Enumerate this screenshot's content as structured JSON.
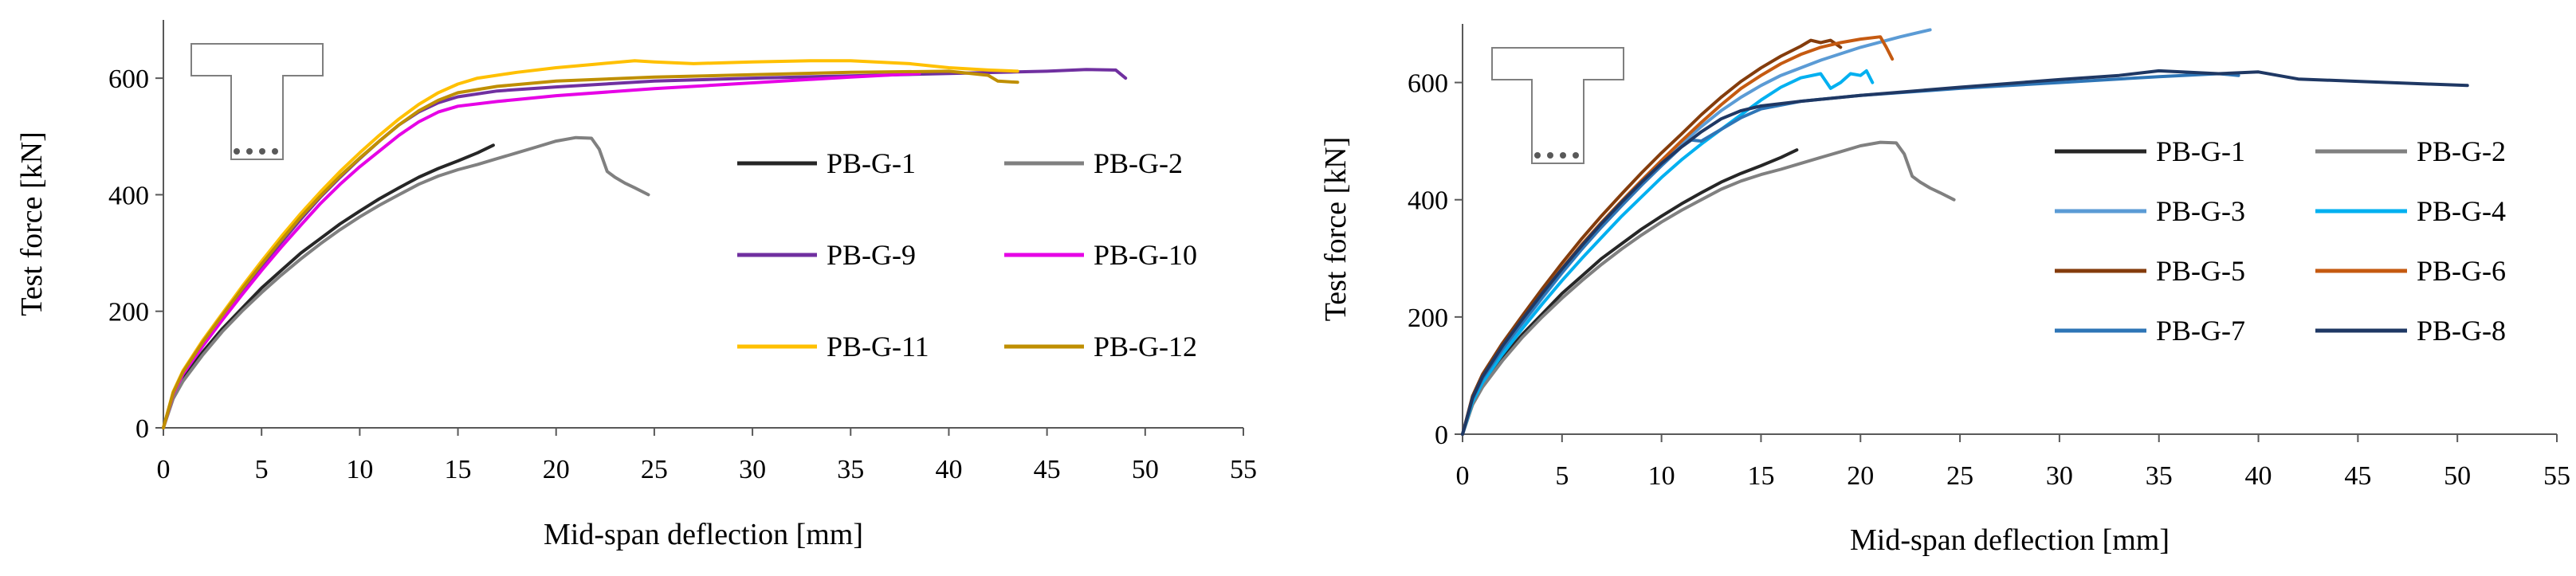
{
  "chart_data": [
    {
      "type": "line",
      "xlabel": "Mid-span deflection [mm]",
      "ylabel": "Test force [kN]",
      "xlim": [
        0,
        55
      ],
      "ylim": [
        0,
        700
      ],
      "xticks": [
        0,
        5,
        10,
        15,
        20,
        25,
        30,
        35,
        40,
        45,
        50,
        55
      ],
      "yticks": [
        0,
        200,
        400,
        600
      ],
      "grid": false,
      "legend_position": "right, inside plot",
      "inset": "T-shaped beam cross-section with four reinforcement dots",
      "series": [
        {
          "name": "PB-G-1",
          "color": "#262626",
          "x": [
            0,
            0.5,
            1,
            2,
            3,
            4,
            5,
            6,
            7,
            8,
            9,
            10,
            11,
            12,
            13,
            14,
            15,
            16,
            16.8
          ],
          "y": [
            0,
            55,
            85,
            130,
            170,
            205,
            240,
            270,
            300,
            325,
            350,
            372,
            393,
            412,
            430,
            445,
            458,
            472,
            485
          ]
        },
        {
          "name": "PB-G-2",
          "color": "#808080",
          "x": [
            0,
            0.5,
            1,
            2,
            3,
            4,
            5,
            6,
            7,
            8,
            9,
            10,
            11,
            12,
            13,
            14,
            15,
            16,
            17,
            18,
            19,
            20,
            21,
            21.8,
            22.2,
            22.6,
            23,
            23.5,
            24,
            24.7
          ],
          "y": [
            0,
            50,
            80,
            125,
            165,
            200,
            232,
            262,
            290,
            316,
            340,
            362,
            382,
            400,
            418,
            432,
            443,
            452,
            462,
            472,
            482,
            492,
            498,
            497,
            478,
            440,
            430,
            420,
            412,
            400
          ]
        },
        {
          "name": "PB-G-9",
          "color": "#7030A0",
          "x": [
            0,
            0.5,
            1,
            2,
            3,
            4,
            5,
            6,
            7,
            8,
            9,
            10,
            11,
            12,
            13,
            14,
            15,
            17,
            20,
            25,
            30,
            35,
            40,
            45,
            47,
            48.5,
            49
          ],
          "y": [
            0,
            60,
            95,
            145,
            190,
            235,
            278,
            318,
            358,
            396,
            430,
            462,
            492,
            520,
            542,
            558,
            568,
            578,
            585,
            595,
            600,
            604,
            608,
            612,
            615,
            614,
            600
          ]
        },
        {
          "name": "PB-G-10",
          "color": "#E600E6",
          "x": [
            0,
            0.5,
            1,
            2,
            3,
            4,
            5,
            6,
            7,
            8,
            9,
            10,
            11,
            12,
            13,
            14,
            15,
            17,
            20,
            25,
            30,
            35,
            38.5
          ],
          "y": [
            0,
            58,
            92,
            140,
            185,
            228,
            270,
            310,
            348,
            385,
            418,
            448,
            475,
            502,
            525,
            542,
            552,
            560,
            570,
            582,
            592,
            602,
            608
          ]
        },
        {
          "name": "PB-G-11",
          "color": "#FFC000",
          "x": [
            0,
            0.5,
            1,
            2,
            3,
            4,
            5,
            6,
            7,
            8,
            9,
            10,
            11,
            12,
            13,
            14,
            15,
            16,
            18,
            20,
            22,
            24,
            25,
            27,
            30,
            33,
            35,
            38,
            40,
            42,
            43.5
          ],
          "y": [
            0,
            62,
            98,
            150,
            196,
            242,
            286,
            328,
            368,
            405,
            440,
            472,
            502,
            530,
            555,
            575,
            590,
            600,
            610,
            618,
            624,
            630,
            628,
            625,
            628,
            630,
            630,
            625,
            618,
            614,
            612
          ]
        },
        {
          "name": "PB-G-12",
          "color": "#BF8F00",
          "x": [
            0,
            0.5,
            1,
            2,
            3,
            4,
            5,
            6,
            7,
            8,
            9,
            10,
            11,
            12,
            13,
            14,
            15,
            17,
            20,
            25,
            30,
            35,
            40,
            42,
            42.5,
            43.5
          ],
          "y": [
            0,
            60,
            96,
            147,
            193,
            238,
            281,
            322,
            362,
            398,
            432,
            463,
            492,
            520,
            544,
            562,
            575,
            586,
            595,
            602,
            606,
            610,
            612,
            605,
            595,
            593
          ]
        }
      ]
    },
    {
      "type": "line",
      "xlabel": "Mid-span deflection [mm]",
      "ylabel": "Test force [kN]",
      "xlim": [
        0,
        55
      ],
      "ylim": [
        0,
        700
      ],
      "xticks": [
        0,
        5,
        10,
        15,
        20,
        25,
        30,
        35,
        40,
        45,
        50,
        55
      ],
      "yticks": [
        0,
        200,
        400,
        600
      ],
      "grid": false,
      "legend_position": "right, inside plot",
      "inset": "T-shaped beam cross-section with four reinforcement dots",
      "series": [
        {
          "name": "PB-G-1",
          "color": "#262626",
          "x": [
            0,
            0.5,
            1,
            2,
            3,
            4,
            5,
            6,
            7,
            8,
            9,
            10,
            11,
            12,
            13,
            14,
            15,
            16,
            16.8
          ],
          "y": [
            0,
            55,
            85,
            130,
            170,
            205,
            240,
            270,
            300,
            325,
            350,
            372,
            393,
            412,
            430,
            445,
            458,
            472,
            485
          ]
        },
        {
          "name": "PB-G-2",
          "color": "#808080",
          "x": [
            0,
            0.5,
            1,
            2,
            3,
            4,
            5,
            6,
            7,
            8,
            9,
            10,
            11,
            12,
            13,
            14,
            15,
            16,
            17,
            18,
            19,
            20,
            21,
            21.8,
            22.2,
            22.6,
            23,
            23.5,
            24,
            24.7
          ],
          "y": [
            0,
            50,
            80,
            125,
            165,
            200,
            232,
            262,
            290,
            316,
            340,
            362,
            382,
            400,
            418,
            432,
            443,
            452,
            462,
            472,
            482,
            492,
            498,
            497,
            478,
            440,
            430,
            420,
            412,
            400
          ]
        },
        {
          "name": "PB-G-3",
          "color": "#5B9BD5",
          "x": [
            0,
            0.5,
            1,
            2,
            3,
            4,
            5,
            6,
            7,
            8,
            9,
            10,
            11,
            12,
            13,
            14,
            15,
            16,
            18,
            20,
            22,
            23.5
          ],
          "y": [
            0,
            58,
            92,
            142,
            188,
            232,
            275,
            316,
            355,
            392,
            428,
            462,
            495,
            525,
            552,
            575,
            595,
            612,
            638,
            660,
            678,
            690
          ]
        },
        {
          "name": "PB-G-4",
          "color": "#00B0F0",
          "x": [
            0,
            0.5,
            1,
            2,
            3,
            4,
            5,
            6,
            7,
            8,
            9,
            10,
            11,
            12,
            13,
            14,
            15,
            16,
            17,
            18,
            18.5,
            19,
            19.5,
            20,
            20.3,
            20.6
          ],
          "y": [
            0,
            55,
            88,
            136,
            180,
            222,
            262,
            300,
            336,
            372,
            405,
            438,
            468,
            495,
            520,
            545,
            570,
            592,
            608,
            615,
            590,
            600,
            615,
            612,
            620,
            600
          ]
        },
        {
          "name": "PB-G-5",
          "color": "#843C0C",
          "x": [
            0,
            0.5,
            1,
            2,
            3,
            4,
            5,
            6,
            7,
            8,
            9,
            10,
            11,
            12,
            13,
            14,
            15,
            16,
            17,
            17.5,
            18,
            18.5,
            19
          ],
          "y": [
            0,
            65,
            102,
            155,
            202,
            248,
            292,
            334,
            373,
            410,
            446,
            480,
            512,
            545,
            575,
            602,
            625,
            645,
            662,
            672,
            668,
            672,
            660
          ]
        },
        {
          "name": "PB-G-6",
          "color": "#C55A11",
          "x": [
            0,
            0.5,
            1,
            2,
            3,
            4,
            5,
            6,
            7,
            8,
            9,
            10,
            11,
            12,
            13,
            14,
            15,
            16,
            17,
            18,
            19,
            20,
            21,
            21.3,
            21.6
          ],
          "y": [
            0,
            62,
            98,
            150,
            196,
            240,
            283,
            324,
            362,
            398,
            433,
            467,
            500,
            532,
            562,
            590,
            612,
            632,
            648,
            660,
            668,
            674,
            678,
            660,
            640
          ]
        },
        {
          "name": "PB-G-7",
          "color": "#2E75B6",
          "x": [
            0,
            0.5,
            1,
            2,
            3,
            4,
            5,
            6,
            7,
            8,
            9,
            10,
            11,
            11.5,
            12,
            13,
            14,
            15,
            17,
            20,
            25,
            30,
            35,
            38,
            39
          ],
          "y": [
            0,
            60,
            95,
            145,
            190,
            234,
            276,
            316,
            354,
            390,
            425,
            458,
            490,
            502,
            500,
            520,
            540,
            555,
            568,
            578,
            590,
            600,
            610,
            615,
            612
          ]
        },
        {
          "name": "PB-G-8",
          "color": "#1F3864",
          "x": [
            0,
            0.5,
            1,
            2,
            3,
            4,
            5,
            6,
            7,
            8,
            9,
            10,
            11,
            12,
            13,
            14,
            15,
            17,
            20,
            25,
            30,
            33,
            35,
            38,
            40,
            42,
            45,
            48,
            50.5
          ],
          "y": [
            0,
            62,
            98,
            150,
            196,
            240,
            282,
            322,
            360,
            396,
            430,
            462,
            490,
            516,
            538,
            552,
            560,
            568,
            578,
            592,
            605,
            612,
            620,
            615,
            618,
            606,
            602,
            598,
            595
          ]
        }
      ]
    }
  ]
}
